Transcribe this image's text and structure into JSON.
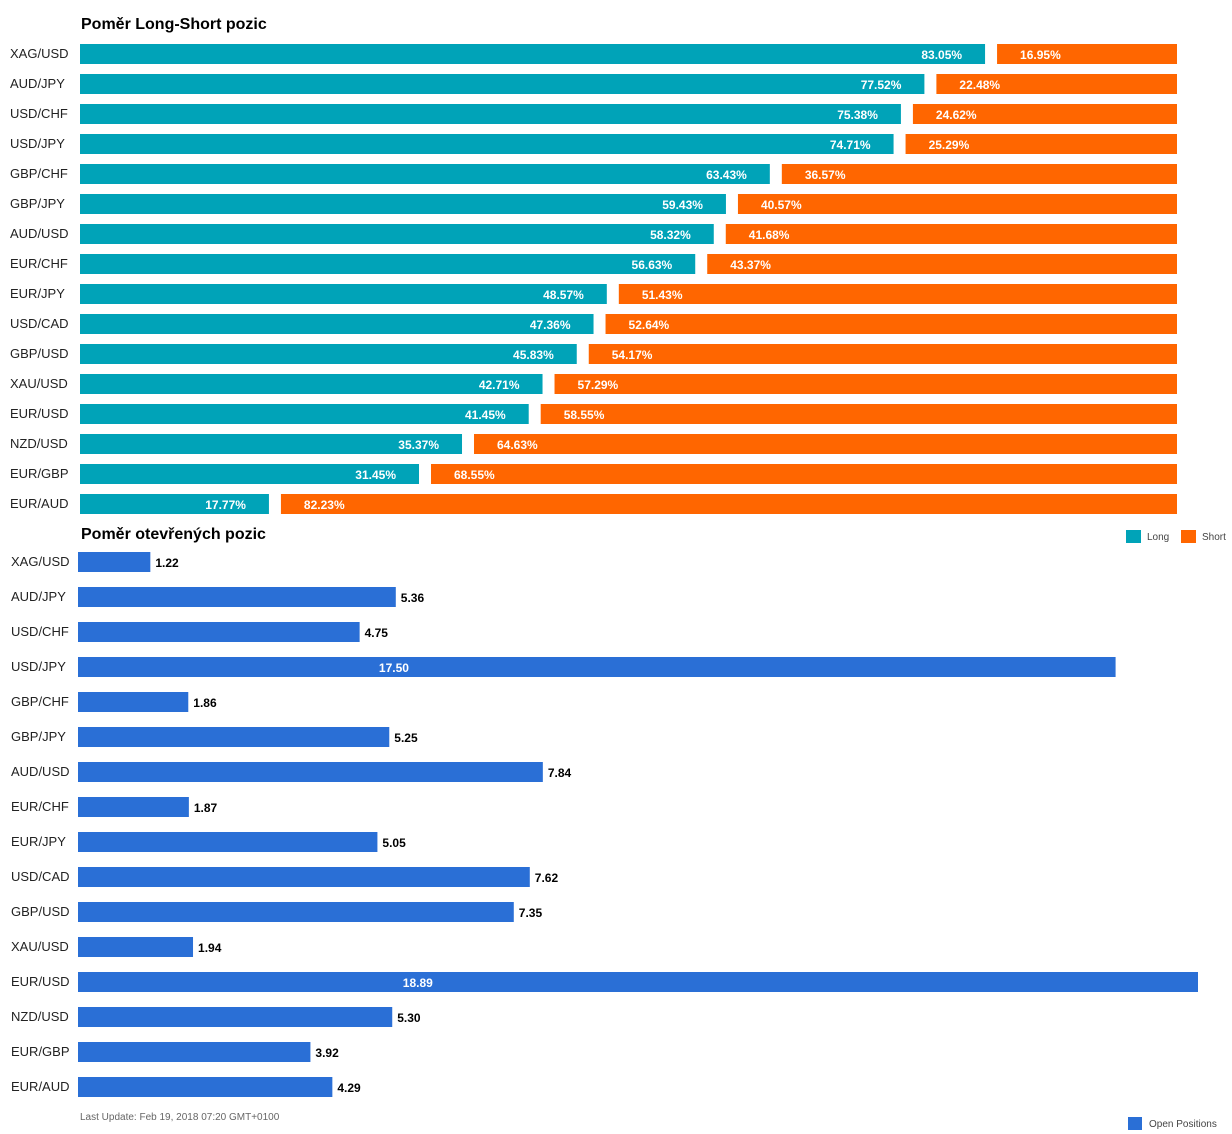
{
  "chart_data": [
    {
      "type": "bar",
      "orientation": "horizontal",
      "stacked": true,
      "title": "Poměr Long-Short pozic",
      "categories": [
        "XAG/USD",
        "AUD/JPY",
        "USD/CHF",
        "USD/JPY",
        "GBP/CHF",
        "GBP/JPY",
        "AUD/USD",
        "EUR/CHF",
        "EUR/JPY",
        "USD/CAD",
        "GBP/USD",
        "XAU/USD",
        "EUR/USD",
        "NZD/USD",
        "EUR/GBP",
        "EUR/AUD"
      ],
      "series": [
        {
          "name": "Long",
          "color": "#00a3b8",
          "values": [
            83.05,
            77.52,
            75.38,
            74.71,
            63.43,
            59.43,
            58.32,
            56.63,
            48.57,
            47.36,
            45.83,
            42.71,
            41.45,
            35.37,
            31.45,
            17.77
          ],
          "labels": [
            "83.05%",
            "77.52%",
            "75.38%",
            "74.71%",
            "63.43%",
            "59.43%",
            "58.32%",
            "56.63%",
            "48.57%",
            "47.36%",
            "45.83%",
            "42.71%",
            "41.45%",
            "35.37%",
            "31.45%",
            "17.77%"
          ]
        },
        {
          "name": "Short",
          "color": "#ff6600",
          "values": [
            16.95,
            22.48,
            24.62,
            25.29,
            36.57,
            40.57,
            41.68,
            43.37,
            51.43,
            52.64,
            54.17,
            57.29,
            58.55,
            64.63,
            68.55,
            82.23
          ],
          "labels": [
            "16.95%",
            "22.48%",
            "24.62%",
            "25.29%",
            "36.57%",
            "40.57%",
            "41.68%",
            "43.37%",
            "51.43%",
            "52.64%",
            "54.17%",
            "57.29%",
            "58.55%",
            "64.63%",
            "68.55%",
            "82.23%"
          ]
        }
      ],
      "xlim": [
        0,
        100
      ],
      "legend": "bottom-right"
    },
    {
      "type": "bar",
      "orientation": "horizontal",
      "title": "Poměr otevřených pozic",
      "categories": [
        "XAG/USD",
        "AUD/JPY",
        "USD/CHF",
        "USD/JPY",
        "GBP/CHF",
        "GBP/JPY",
        "AUD/USD",
        "EUR/CHF",
        "EUR/JPY",
        "USD/CAD",
        "GBP/USD",
        "XAU/USD",
        "EUR/USD",
        "NZD/USD",
        "EUR/GBP",
        "EUR/AUD"
      ],
      "series": [
        {
          "name": "Open Positions",
          "color": "#2a6fd6",
          "values": [
            1.22,
            5.36,
            4.75,
            17.5,
            1.86,
            5.25,
            7.84,
            1.87,
            5.05,
            7.62,
            7.35,
            1.94,
            18.89,
            5.3,
            3.92,
            4.29
          ],
          "labels": [
            "1.22",
            "5.36",
            "4.75",
            "17.50",
            "1.86",
            "5.25",
            "7.84",
            "1.87",
            "5.05",
            "7.62",
            "7.35",
            "1.94",
            "18.89",
            "5.30",
            "3.92",
            "4.29"
          ]
        }
      ],
      "xlim": [
        0,
        18.89
      ],
      "legend": "bottom-right"
    }
  ],
  "footer": {
    "last_update": "Last Update: Feb 19, 2018 07:20 GMT+0100"
  }
}
